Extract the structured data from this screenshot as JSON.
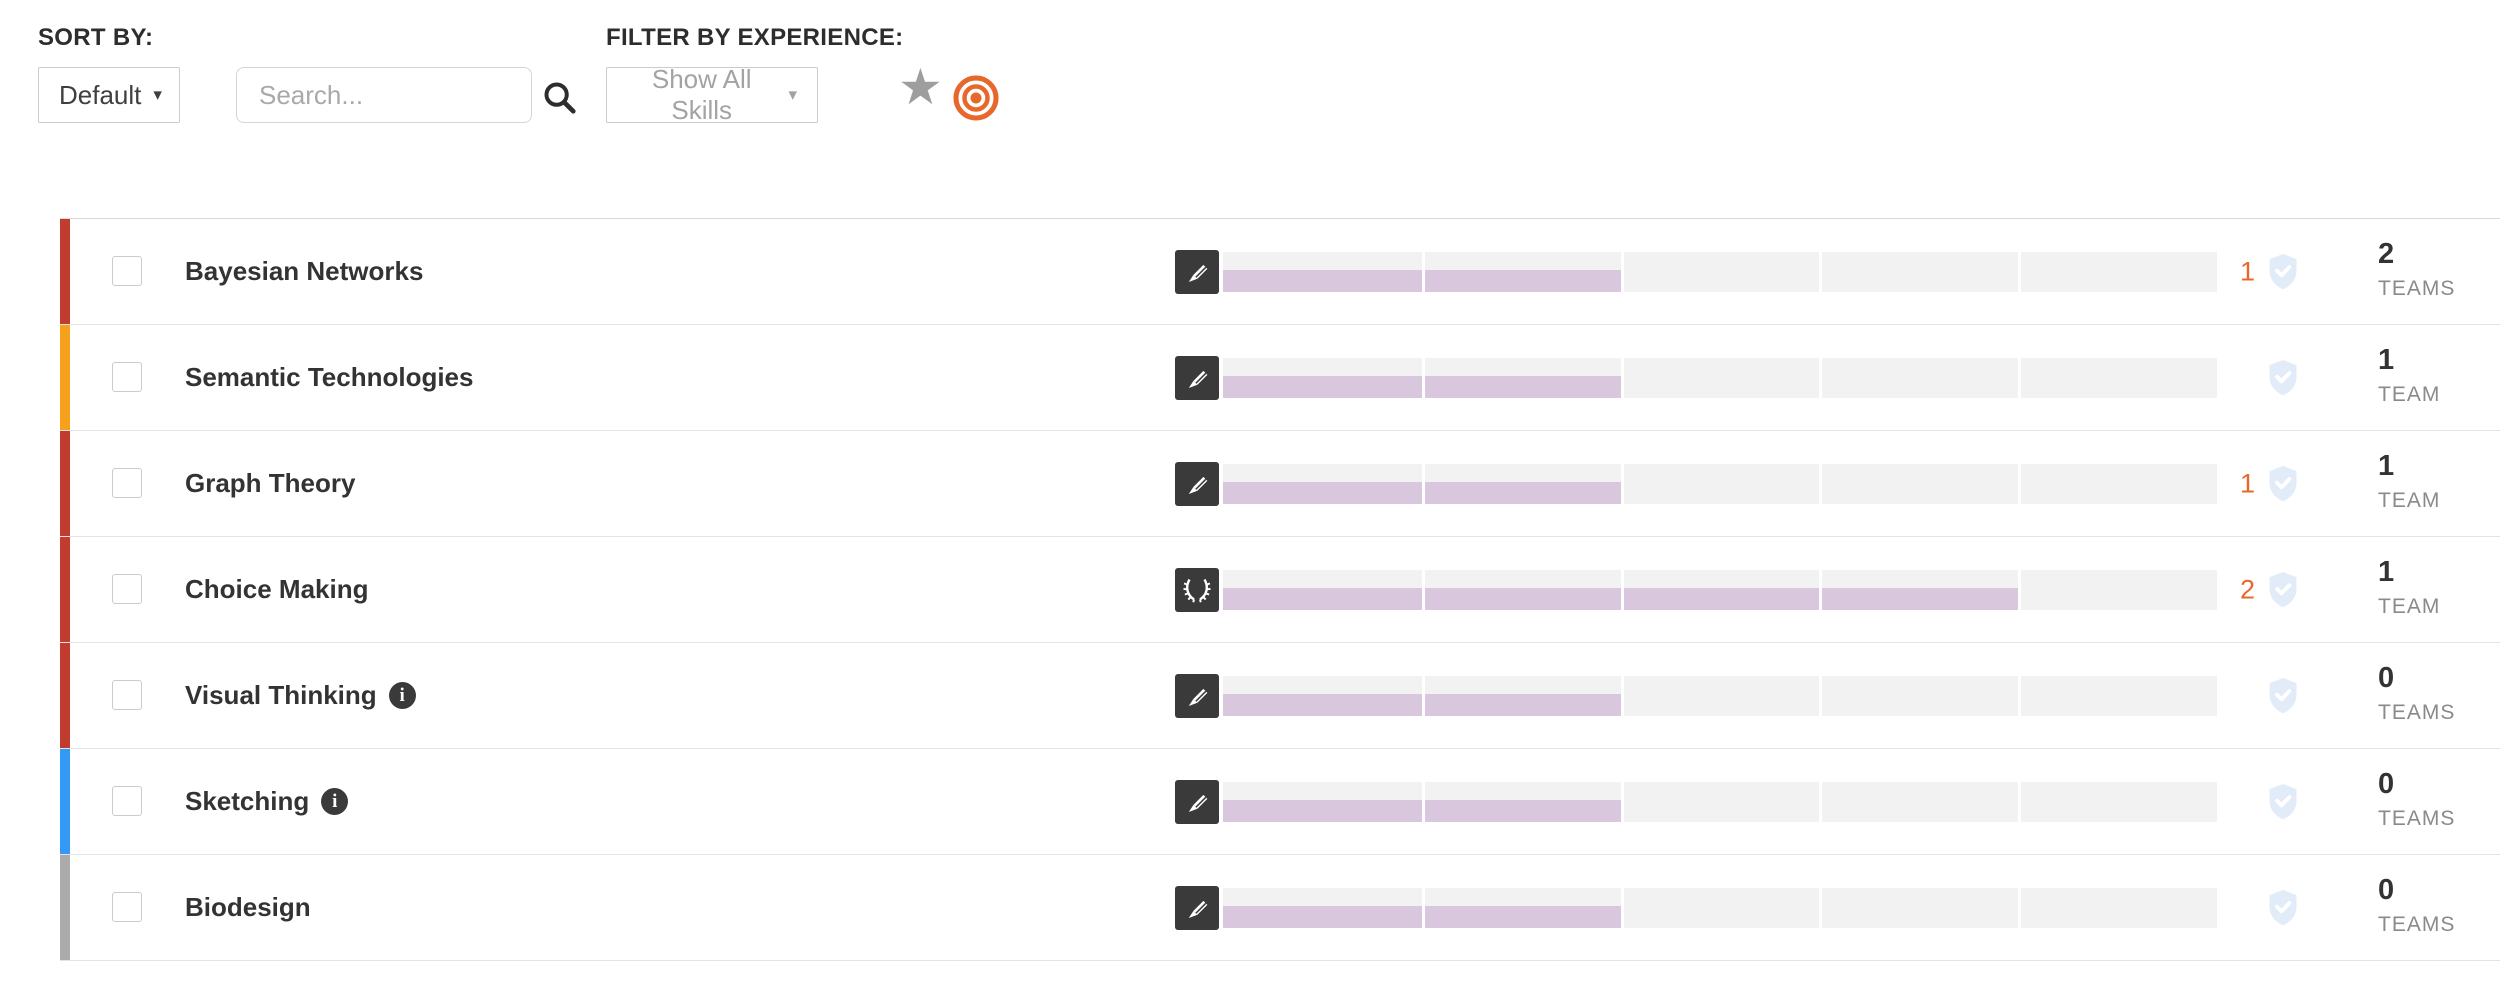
{
  "toolbar": {
    "sort_by_label": "SORT BY:",
    "sort_value": "Default",
    "caret": "▾",
    "search_placeholder": "Search...",
    "search_icon": "magnifier-icon",
    "filter_label": "FILTER BY EXPERIENCE:",
    "filter_value": "Show All Skills",
    "star_glyph": "★",
    "star_icon": "star-icon",
    "bullseye_icon": "bullseye-icon"
  },
  "experience_bar": {
    "segments": 5,
    "track_color": "#f2f2f2",
    "fill_color": "#d8c7dd"
  },
  "colors": {
    "accent_orange": "#e8682c",
    "shield_blue": "#e2ecf9",
    "icon_dark": "#3a3a3a",
    "category_red": "#c13c2e",
    "category_orange": "#f5a11c",
    "category_blue": "#3498f5",
    "category_gray": "#ababab"
  },
  "skills": [
    {
      "name": "Bayesian Networks",
      "category_color": "#c13c2e",
      "icon": "pencil-icon",
      "has_info": false,
      "experience_pct": 40,
      "pending_count": "1",
      "teams_value": "2",
      "teams_label": "TEAMS"
    },
    {
      "name": "Semantic Technologies",
      "category_color": "#f5a11c",
      "icon": "pencil-icon",
      "has_info": false,
      "experience_pct": 40,
      "pending_count": "",
      "teams_value": "1",
      "teams_label": "TEAM"
    },
    {
      "name": "Graph Theory",
      "category_color": "#c13c2e",
      "icon": "pencil-icon",
      "has_info": false,
      "experience_pct": 40,
      "pending_count": "1",
      "teams_value": "1",
      "teams_label": "TEAM"
    },
    {
      "name": "Choice Making",
      "category_color": "#c13c2e",
      "icon": "laurel-icon",
      "has_info": false,
      "experience_pct": 80,
      "pending_count": "2",
      "teams_value": "1",
      "teams_label": "TEAM"
    },
    {
      "name": "Visual Thinking",
      "category_color": "#c13c2e",
      "icon": "pencil-icon",
      "has_info": true,
      "experience_pct": 40,
      "pending_count": "",
      "teams_value": "0",
      "teams_label": "TEAMS"
    },
    {
      "name": "Sketching",
      "category_color": "#3498f5",
      "icon": "pencil-icon",
      "has_info": true,
      "experience_pct": 40,
      "pending_count": "",
      "teams_value": "0",
      "teams_label": "TEAMS"
    },
    {
      "name": "Biodesign",
      "category_color": "#ababab",
      "icon": "pencil-icon",
      "has_info": false,
      "experience_pct": 40,
      "pending_count": "",
      "teams_value": "0",
      "teams_label": "TEAMS"
    }
  ]
}
